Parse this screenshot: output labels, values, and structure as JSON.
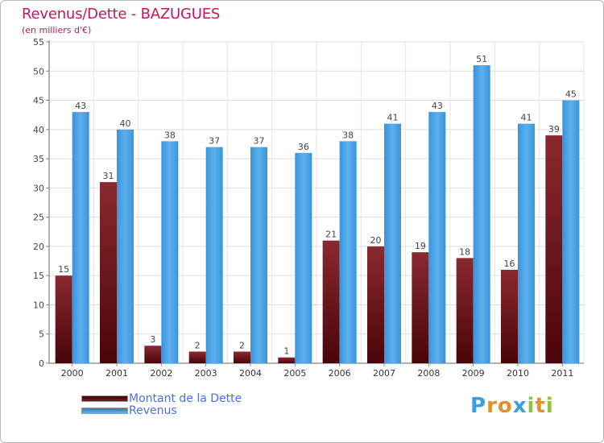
{
  "chart_data": {
    "type": "bar",
    "title": "Revenus/Dette - BAZUGUES",
    "subtitle": "(en milliers d'€)",
    "categories": [
      "2000",
      "2001",
      "2002",
      "2003",
      "2004",
      "2005",
      "2006",
      "2007",
      "2008",
      "2009",
      "2010",
      "2011"
    ],
    "series": [
      {
        "name": "Montant de la Dette",
        "color": "#7a1c22",
        "values": [
          15,
          31,
          3,
          2,
          2,
          1,
          21,
          20,
          19,
          18,
          16,
          39
        ]
      },
      {
        "name": "Revenus",
        "color": "#4aa3e6",
        "values": [
          43,
          40,
          38,
          37,
          37,
          36,
          38,
          41,
          43,
          51,
          41,
          45
        ]
      }
    ],
    "yticks": [
      0,
      5,
      10,
      15,
      20,
      25,
      30,
      35,
      40,
      45,
      50,
      55
    ],
    "ylim": [
      0,
      55
    ],
    "grid": true,
    "legend_position": "bottom-left"
  },
  "legend": {
    "debt_label": "Montant de la Dette",
    "revenue_label": "Revenus"
  },
  "logo": {
    "text": "Proxiti",
    "letters": [
      "P",
      "r",
      "o",
      "x",
      "i",
      "t",
      "i"
    ],
    "colors": [
      "#3aa0dc",
      "#e3902a",
      "#e3902a",
      "#3aa0dc",
      "#8fc23d",
      "#e3902a",
      "#8fc23d"
    ]
  }
}
